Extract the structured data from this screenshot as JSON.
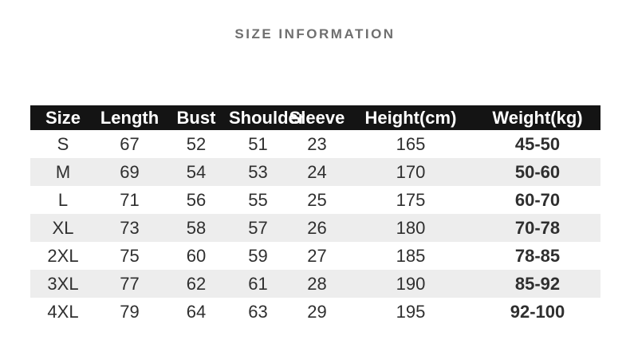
{
  "title": "SIZE INFORMATION",
  "chart_data": {
    "type": "table",
    "title": "SIZE INFORMATION",
    "headers": [
      "Size",
      "Length",
      "Bust",
      "Shoulder",
      "Sleeve",
      "Height(cm)",
      "Weight(kg)"
    ],
    "rows": [
      [
        "S",
        "67",
        "52",
        "51",
        "23",
        "165",
        "45-50"
      ],
      [
        "M",
        "69",
        "54",
        "53",
        "24",
        "170",
        "50-60"
      ],
      [
        "L",
        "71",
        "56",
        "55",
        "25",
        "175",
        "60-70"
      ],
      [
        "XL",
        "73",
        "58",
        "57",
        "26",
        "180",
        "70-78"
      ],
      [
        "2XL",
        "75",
        "60",
        "59",
        "27",
        "185",
        "78-85"
      ],
      [
        "3XL",
        "77",
        "62",
        "61",
        "28",
        "190",
        "85-92"
      ],
      [
        "4XL",
        "79",
        "64",
        "63",
        "29",
        "195",
        "92-100"
      ]
    ],
    "layout_hints": {
      "zebra_striping": true,
      "first_data_row_bg": "white",
      "bold_columns": [
        "Weight(kg)"
      ],
      "grid": false
    }
  },
  "colors": {
    "header_bg": "#141414",
    "header_text": "#ffffff",
    "row_alt_bg": "#ededed",
    "body_text": "#2f2f2f",
    "title_text": "#6f6f6f"
  }
}
